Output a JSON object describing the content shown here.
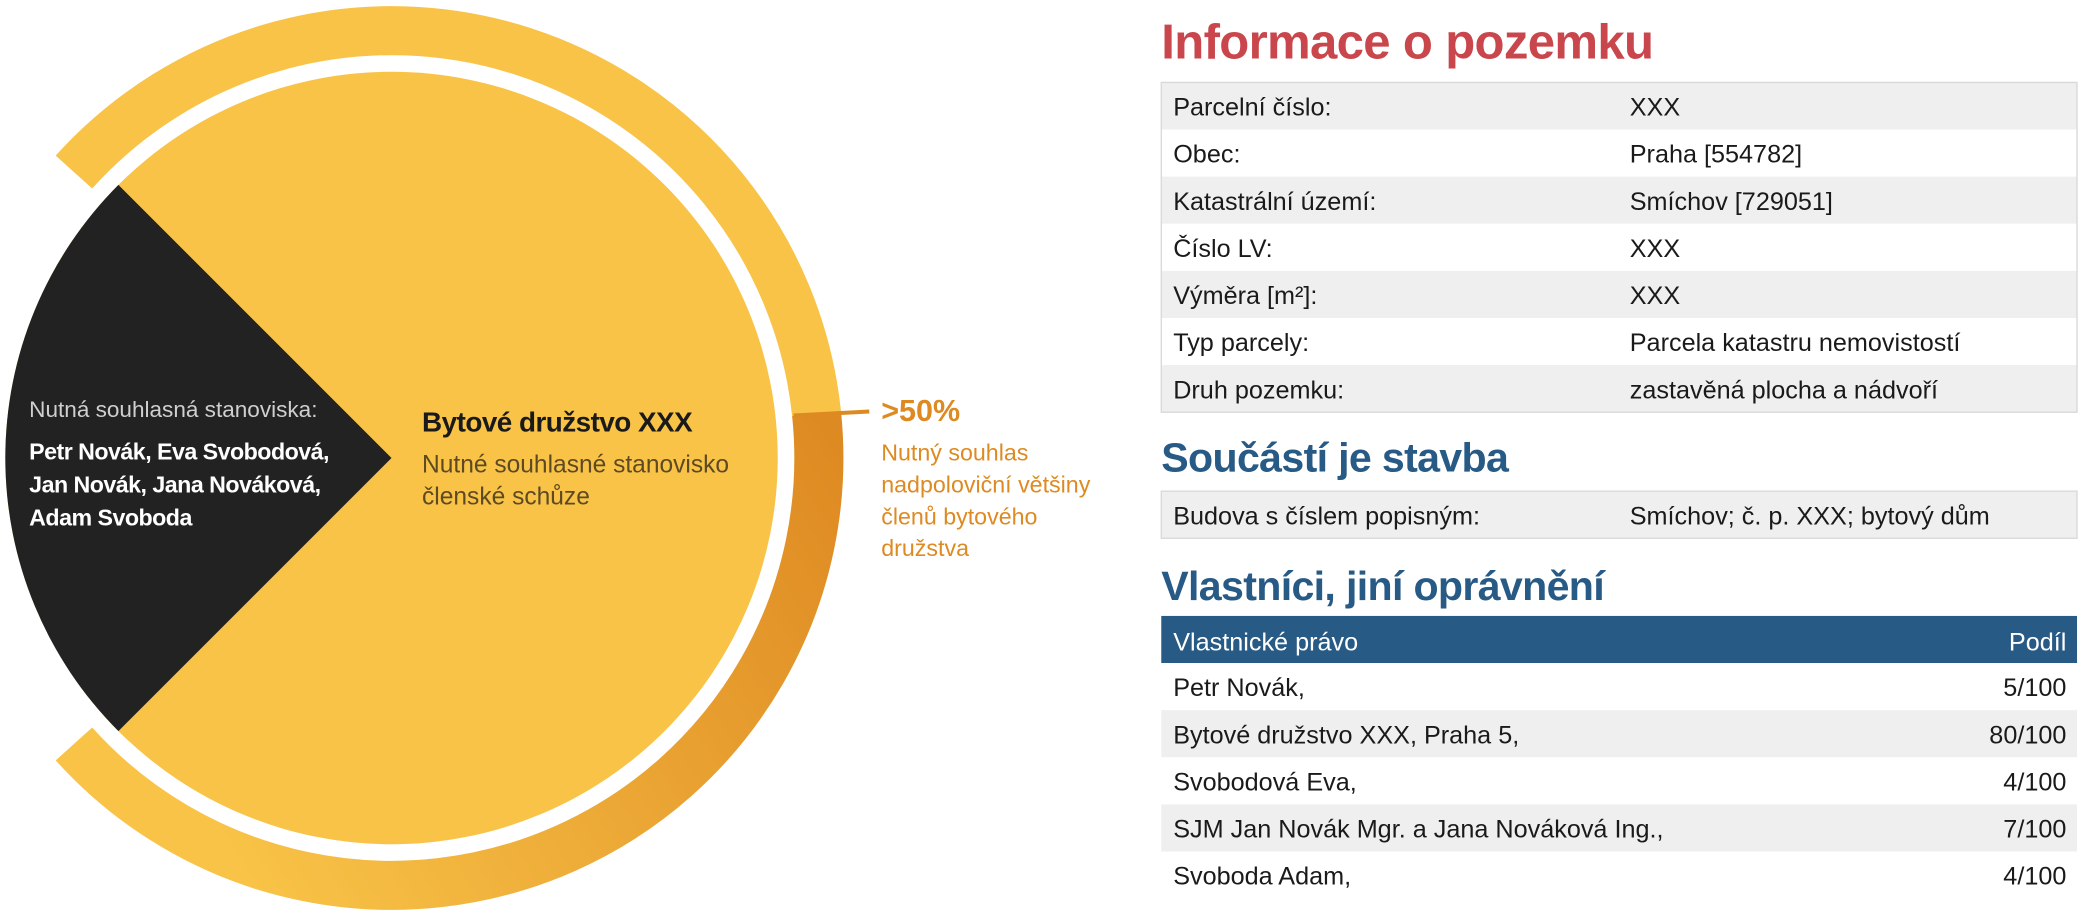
{
  "diagram": {
    "group_label": "Nutná souhlasná stanoviska:",
    "group_members": [
      "Petr Novák, Eva Svobodová,",
      "Jan Novák, Jana Nováková,",
      "Adam Svoboda"
    ],
    "center_title": "Bytové družstvo XXX",
    "center_text": [
      "Nutné souhlasné stanovisko",
      "členské schůze"
    ],
    "threshold": ">50%",
    "threshold_note": [
      "Nutný souhlas",
      "nadpoloviční většiny",
      "členů bytového",
      "družstva"
    ]
  },
  "land_info": {
    "title": "Informace o pozemku",
    "rows": [
      [
        "Parcelní číslo:",
        "XXX"
      ],
      [
        "Obec:",
        "Praha [554782]"
      ],
      [
        "Katastrální území:",
        "Smíchov [729051]"
      ],
      [
        "Číslo LV:",
        "XXX"
      ],
      [
        "Výměra [m²]:",
        "XXX"
      ],
      [
        "Typ parcely:",
        "Parcela katastru nemovistostí"
      ],
      [
        "Druh pozemku:",
        "zastavěná plocha a nádvoří"
      ]
    ]
  },
  "building": {
    "title": "Součástí je stavba",
    "rows": [
      [
        "Budova s číslem popisným:",
        "Smíchov; č. p. XXX; bytový dům"
      ]
    ]
  },
  "owners": {
    "title": "Vlastníci, jiní oprávnění",
    "header": [
      "Vlastnické právo",
      "Podíl"
    ],
    "rows": [
      [
        "Petr Novák,",
        "5/100"
      ],
      [
        "Bytové družstvo XXX, Praha 5,",
        "80/100"
      ],
      [
        "Svobodová Eva,",
        "4/100"
      ],
      [
        "SJM Jan Novák Mgr. a Jana Nováková Ing.,",
        "7/100"
      ],
      [
        "Svoboda Adam,",
        "4/100"
      ]
    ]
  }
}
